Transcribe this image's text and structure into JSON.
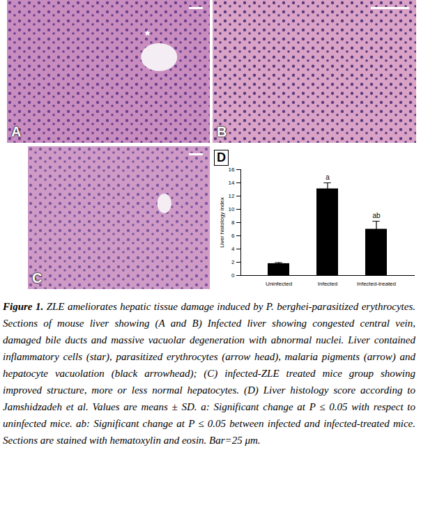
{
  "figure": {
    "panels": [
      {
        "label": "A",
        "marks": [
          "*"
        ]
      },
      {
        "label": "B",
        "marks": []
      },
      {
        "label": "C",
        "marks": []
      }
    ],
    "caption_label": "Figure 1.",
    "caption": "ZLE ameliorates hepatic tissue damage induced by P. berghei-parasitized erythrocytes. Sections of mouse liver showing (A and B) Infected liver showing congested central vein, damaged bile ducts and massive vacuolar degeneration with abnormal nuclei. Liver contained inflammatory cells (star), parasitized erythrocytes (arrow head), malaria pigments (arrow) and hepatocyte vacuolation (black arrowhead); (C) infected-ZLE treated mice group showing improved structure, more or less normal hepatocytes. (D) Liver histology score according to Jamshidzadeh et al. Values are means ± SD. a: Significant change at P ≤ 0.05 with respect to uninfected mice. ab: Significant change at P ≤ 0.05 between infected and infected-treated mice. Sections are stained with hematoxylin and eosin. Bar=25 μm."
  },
  "chart_data": {
    "type": "bar",
    "title": "D",
    "y_label": "Liver histology index",
    "categories": [
      "Uninfected",
      "Infected",
      "Infected-treated"
    ],
    "values": [
      1.8,
      13.1,
      7.0
    ],
    "errors": [
      0.15,
      0.9,
      1.2
    ],
    "annotations": [
      null,
      "a",
      "ab"
    ],
    "color": "#000000",
    "ylim": [
      0,
      16
    ],
    "yticks": [
      0,
      2,
      4,
      6,
      8,
      10,
      12,
      14,
      16
    ],
    "grid": false
  }
}
